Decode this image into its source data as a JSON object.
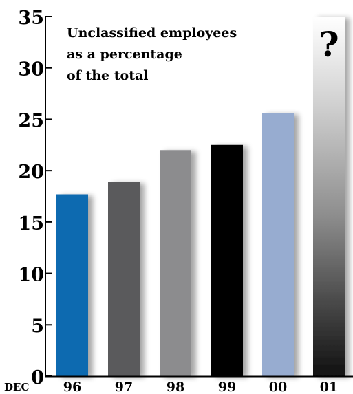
{
  "chart_data": {
    "type": "bar",
    "title_lines": [
      "Unclassified employees",
      "as a percentage",
      "of the total"
    ],
    "x_prefix": "DEC",
    "categories": [
      "96",
      "97",
      "98",
      "99",
      "00",
      "01"
    ],
    "values": [
      17.7,
      18.9,
      22.0,
      22.5,
      25.6,
      null
    ],
    "unknown_marker": "?",
    "ylim": [
      0,
      35
    ],
    "yticks": [
      0,
      5,
      10,
      15,
      20,
      25,
      30,
      35
    ],
    "grid": false,
    "colors": [
      "#0a6ab0",
      "#5a5a5c",
      "#8c8c8e",
      "#000000",
      "#97acd0",
      "gradient"
    ]
  }
}
